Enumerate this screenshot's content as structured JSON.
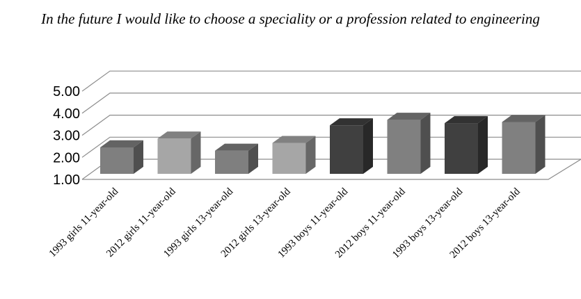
{
  "chart_data": {
    "type": "bar",
    "title": "In the future I would like to choose a speciality or a profession related to engineering",
    "xlabel": "",
    "ylabel": "",
    "ylim": [
      1.0,
      5.0
    ],
    "yticks": [
      "1.00",
      "2.00",
      "3.00",
      "4.00",
      "5.00"
    ],
    "categories": [
      "1993 girls 11-year-old",
      "2012 girls 11-year-old",
      "1993 girls 13-year-old",
      "2012 girls 13-year-old",
      "1993 boys 11-year-old",
      "2012 boys 11-year-old",
      "1993 boys 13-year-old",
      "2012 boys 13-year-old"
    ],
    "values": [
      2.2,
      2.6,
      2.05,
      2.4,
      3.2,
      3.45,
      3.3,
      3.35
    ],
    "colors": [
      "#7f7f7f",
      "#a6a6a6",
      "#7f7f7f",
      "#a6a6a6",
      "#404040",
      "#808080",
      "#404040",
      "#808080"
    ],
    "grid": true,
    "legend": "none",
    "style": "3d-column"
  }
}
